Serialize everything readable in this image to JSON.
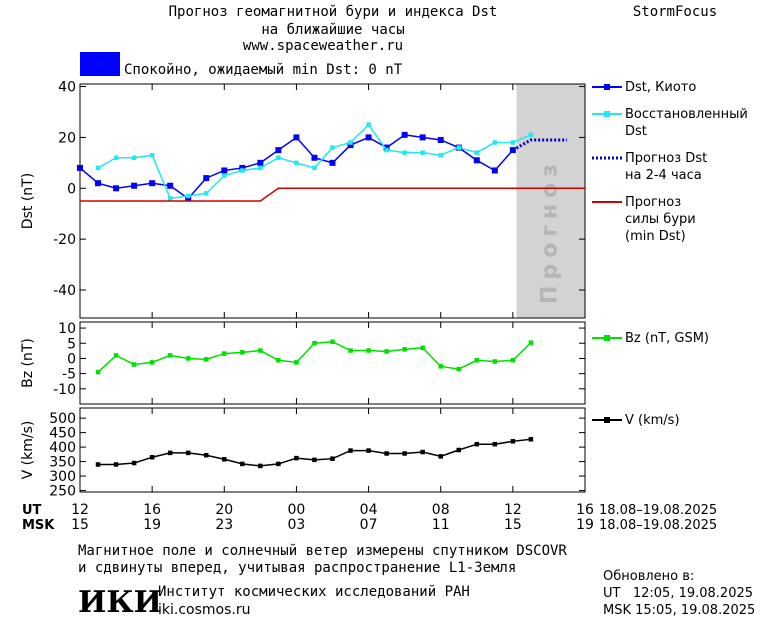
{
  "header": {
    "title": "Прогноз геомагнитной бури и индекса Dst",
    "subtitle": "на ближайшие часы",
    "url": "www.spaceweather.ru",
    "brand": "StormFocus"
  },
  "status": {
    "text": "Спокойно, ожидаемый min Dst: 0 nT",
    "color": "#0000ff"
  },
  "chart_data": [
    {
      "type": "line",
      "y_label": "Dst (nT)",
      "xlim": [
        12,
        40
      ],
      "ylim": [
        -51,
        41
      ],
      "yticks": [
        40,
        20,
        0,
        -20,
        -40
      ],
      "forecast_band": {
        "xlim": [
          36.2,
          40
        ],
        "label": "Прогноз",
        "color": "#d3d3d3"
      },
      "series": [
        {
          "name": "Dst, Киото",
          "color": "#0000ff",
          "style": "markers",
          "x": [
            12,
            13,
            14,
            15,
            16,
            17,
            18,
            19,
            20,
            21,
            22,
            23,
            24,
            25,
            26,
            27,
            28,
            29,
            30,
            31,
            32,
            33,
            34,
            35,
            36
          ],
          "values": [
            8,
            2,
            0,
            1,
            2,
            1,
            -4,
            4,
            7,
            8,
            10,
            15,
            20,
            12,
            10,
            17,
            20,
            16,
            21,
            20,
            19,
            16,
            11,
            7,
            15
          ]
        },
        {
          "name": "Восстановленный\nDst",
          "color": "#22e8f0",
          "style": "markers",
          "x": [
            13,
            14,
            15,
            16,
            17,
            18,
            19,
            20,
            21,
            22,
            23,
            24,
            25,
            26,
            27,
            28,
            29,
            30,
            31,
            32,
            33,
            34,
            35,
            36,
            37
          ],
          "values": [
            8,
            12,
            12,
            13,
            -4,
            -3,
            -2,
            5,
            7,
            8,
            12,
            10,
            8,
            16,
            18,
            25,
            15,
            14,
            14,
            13,
            16,
            14,
            18,
            18,
            21
          ]
        },
        {
          "name": "Прогноз Dst\nна 2-4 часа",
          "color": "#0000c0",
          "style": "dotted",
          "x": [
            36,
            37,
            39
          ],
          "values": [
            15,
            19,
            19
          ]
        },
        {
          "name": "Прогноз\nсилы бури\n(min Dst)",
          "color": "#d00000",
          "style": "line",
          "x": [
            12,
            22,
            23,
            40
          ],
          "values": [
            -5,
            -5,
            0,
            0
          ]
        }
      ]
    },
    {
      "type": "line",
      "y_label": "Bz (nT)",
      "xlim": [
        12,
        40
      ],
      "ylim": [
        -15,
        12
      ],
      "yticks": [
        10,
        5,
        0,
        -5,
        -10
      ],
      "series": [
        {
          "name": "Bz (nT, GSM)",
          "color": "#00e000",
          "style": "markers",
          "x": [
            13,
            14,
            15,
            16,
            17,
            18,
            19,
            20,
            21,
            22,
            23,
            24,
            25,
            26,
            27,
            28,
            29,
            30,
            31,
            32,
            33,
            34,
            35,
            36,
            37
          ],
          "values": [
            -4.5,
            1,
            -2,
            -1.3,
            1,
            0,
            -0.3,
            1.6,
            2,
            2.6,
            -0.6,
            -1.3,
            5,
            5.5,
            2.6,
            2.6,
            2.3,
            3,
            3.5,
            -2.6,
            -3.5,
            -0.6,
            -1,
            -0.6,
            5.2
          ]
        }
      ]
    },
    {
      "type": "line",
      "y_label": "V (km/s)",
      "xlim": [
        12,
        40
      ],
      "ylim": [
        245,
        535
      ],
      "yticks": [
        500,
        450,
        400,
        350,
        300,
        250
      ],
      "xticks": [
        12,
        16,
        20,
        {
          "value": 24,
          "label": "00"
        },
        {
          "value": 28,
          "label": "04"
        },
        {
          "value": 32,
          "label": "08"
        },
        {
          "value": 36,
          "label": "12"
        },
        {
          "value": 40,
          "label": "16"
        }
      ],
      "xticks_msk": [
        {
          "value": 12,
          "label": "15"
        },
        {
          "value": 16,
          "label": "19"
        },
        {
          "value": 20,
          "label": "23"
        },
        {
          "value": 24,
          "label": "03"
        },
        {
          "value": 28,
          "label": "07"
        },
        {
          "value": 32,
          "label": "11"
        },
        {
          "value": 36,
          "label": "15"
        },
        {
          "value": 40,
          "label": "19"
        }
      ],
      "x_rows": [
        "UT",
        "MSK"
      ],
      "x_dates": [
        "18.08–19.08.2025",
        "18.08–19.08.2025"
      ],
      "series": [
        {
          "name": "V (km/s)",
          "color": "#000000",
          "style": "markers",
          "x": [
            13,
            14,
            15,
            16,
            17,
            18,
            19,
            20,
            21,
            22,
            23,
            24,
            25,
            26,
            27,
            28,
            29,
            30,
            31,
            32,
            33,
            34,
            35,
            36,
            37
          ],
          "values": [
            340,
            340,
            345,
            365,
            380,
            380,
            372,
            358,
            342,
            335,
            342,
            362,
            356,
            360,
            388,
            388,
            378,
            378,
            383,
            368,
            390,
            410,
            410,
            420,
            427
          ]
        }
      ]
    }
  ],
  "footer": {
    "note1": "Магнитное поле и солнечный ветер измерены спутником DSCOVR",
    "note2": "и сдвинуты вперед, учитывая распространение L1-Земля",
    "logo": "ИКИ",
    "institute": "Институт космических исследований РАН",
    "site": "iki.cosmos.ru",
    "updated": "Обновлено в:",
    "ut": "UT   12:05, 19.08.2025",
    "msk": "MSK 15:05, 19.08.2025"
  }
}
